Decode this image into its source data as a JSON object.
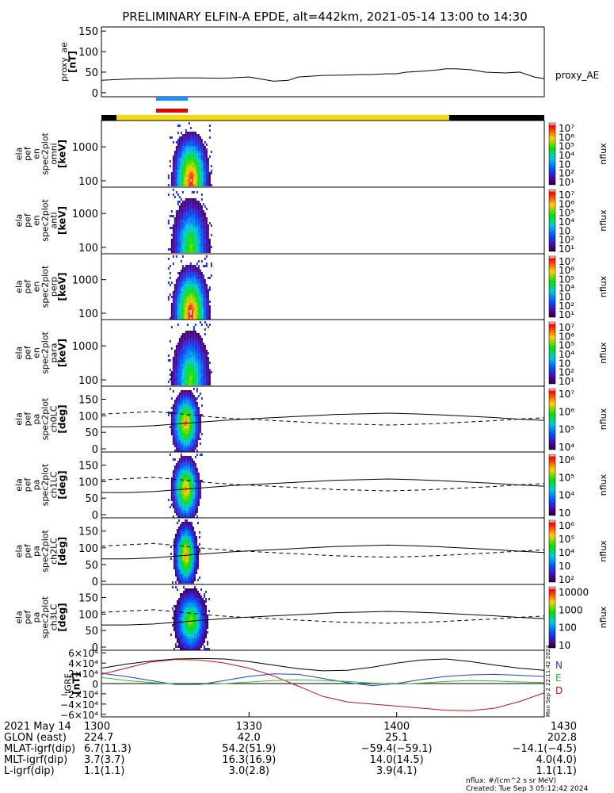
{
  "title": "PRELIMINARY ELFIN-A EPDE, alt=442km, 2021-05-14 13:00 to 14:30",
  "colors": {
    "trace_black": "#000000",
    "igrf_blue": "#1f3fd0",
    "igrf_green": "#2fbf2f",
    "igrf_red": "#d01010",
    "bar_blue": "#1e90ff",
    "bar_red": "#e00000",
    "bar_yellow": "#f4d80a"
  },
  "chart_data": [
    {
      "type": "line",
      "panel": "proxy_ae",
      "ylabel": [
        "proxy_ae",
        "[nT]"
      ],
      "legend": "proxy_AE",
      "ylim": [
        -10,
        160
      ],
      "yticks": [
        "150",
        "100",
        "50",
        "0"
      ],
      "x_minutes": [
        0,
        5,
        8,
        10,
        15,
        18,
        20,
        25,
        28,
        30,
        33,
        35,
        38,
        40,
        45,
        50,
        53,
        55,
        58,
        60,
        62,
        65,
        68,
        70,
        72,
        75,
        78,
        80,
        82,
        85,
        88,
        90
      ],
      "values": [
        30,
        33,
        34,
        34,
        36,
        36,
        36,
        35,
        37,
        38,
        32,
        28,
        30,
        38,
        42,
        43,
        44,
        44,
        46,
        46,
        50,
        52,
        55,
        58,
        58,
        56,
        50,
        49,
        48,
        50,
        38,
        34
      ]
    },
    {
      "type": "heatmap",
      "panel": "omni",
      "ylabel": [
        "ela",
        "pef",
        "en",
        "spec2plot",
        "omni",
        "[keV]"
      ],
      "yscale": "log",
      "yticks": [
        "1000",
        "100"
      ],
      "colorbar_ticks": [
        "10⁷",
        "10⁶",
        "10⁵",
        "10⁴",
        "10⁳",
        "10²",
        "10¹"
      ],
      "colorbar_label": "nflux",
      "x_range_minutes": [
        13.5,
        22.5
      ],
      "peak_log10_flux": 6.5
    },
    {
      "type": "heatmap",
      "panel": "anti",
      "ylabel": [
        "ela",
        "pef",
        "en",
        "spec2plot",
        "anti",
        "[keV]"
      ],
      "yscale": "log",
      "yticks": [
        "1000",
        "100"
      ],
      "colorbar_ticks": [
        "10⁷",
        "10⁶",
        "10⁵",
        "10⁴",
        "10⁳",
        "10²",
        "10¹"
      ],
      "colorbar_label": "nflux",
      "x_range_minutes": [
        13.5,
        22.5
      ],
      "peak_log10_flux": 4.5
    },
    {
      "type": "heatmap",
      "panel": "perp",
      "ylabel": [
        "ela",
        "pef",
        "en",
        "spec2plot",
        "perp",
        "[keV]"
      ],
      "yscale": "log",
      "yticks": [
        "1000",
        "100"
      ],
      "colorbar_ticks": [
        "10⁷",
        "10⁶",
        "10⁵",
        "10⁴",
        "10⁳",
        "10²",
        "10¹"
      ],
      "colorbar_label": "nflux",
      "x_range_minutes": [
        13.5,
        22.5
      ],
      "peak_log10_flux": 6.5
    },
    {
      "type": "heatmap",
      "panel": "para",
      "ylabel": [
        "ela",
        "pef",
        "en",
        "spec2plot",
        "para",
        "[keV]"
      ],
      "yscale": "log",
      "yticks": [
        "1000",
        "100"
      ],
      "colorbar_ticks": [
        "10⁷",
        "10⁶",
        "10⁵",
        "10⁴",
        "10⁳",
        "10²",
        "10¹"
      ],
      "colorbar_label": "nflux",
      "x_range_minutes": [
        13.5,
        22.5
      ],
      "peak_log10_flux": 4.5
    },
    {
      "type": "heatmap",
      "panel": "ch0LC",
      "ylabel": [
        "ela",
        "pef",
        "pa",
        "spec2plot",
        "ch0LC",
        "[deg]"
      ],
      "ylim": [
        0,
        180
      ],
      "yticks": [
        "150",
        "100",
        "50",
        "0"
      ],
      "colorbar_ticks": [
        "10⁷",
        "10⁶",
        "10⁵",
        "10⁴"
      ],
      "colorbar_label": "nflux",
      "x_range_minutes": [
        13.5,
        20.5
      ],
      "loss_cone_deg": [
        67,
        67,
        70,
        76,
        82,
        88,
        92,
        96,
        100,
        104,
        106,
        108,
        106,
        103,
        99,
        95,
        90,
        86
      ],
      "anti_loss_cone_deg": [
        105,
        109,
        113,
        106,
        98,
        92,
        88,
        84,
        80,
        76,
        74,
        72,
        74,
        77,
        81,
        85,
        90,
        94
      ]
    },
    {
      "type": "heatmap",
      "panel": "ch1LC",
      "ylabel": [
        "ela",
        "pef",
        "pa",
        "spec2plot",
        "ch1LC",
        "[deg]"
      ],
      "ylim": [
        0,
        180
      ],
      "yticks": [
        "150",
        "100",
        "50",
        "0"
      ],
      "colorbar_ticks": [
        "10⁶",
        "10⁵",
        "10⁴",
        "10⁳"
      ],
      "colorbar_label": "nflux",
      "x_range_minutes": [
        13.5,
        20.5
      ],
      "loss_cone_deg": [
        67,
        67,
        70,
        76,
        82,
        88,
        92,
        96,
        100,
        104,
        106,
        108,
        106,
        103,
        99,
        95,
        90,
        86
      ],
      "anti_loss_cone_deg": [
        105,
        109,
        113,
        106,
        98,
        92,
        88,
        84,
        80,
        76,
        74,
        72,
        74,
        77,
        81,
        85,
        90,
        94
      ]
    },
    {
      "type": "heatmap",
      "panel": "ch2LC",
      "ylabel": [
        "ela",
        "pef",
        "pa",
        "spec2plot",
        "ch2LC",
        "[deg]"
      ],
      "ylim": [
        0,
        180
      ],
      "yticks": [
        "150",
        "100",
        "50",
        "0"
      ],
      "colorbar_ticks": [
        "10⁶",
        "10⁵",
        "10⁴",
        "10⁳",
        "10²"
      ],
      "colorbar_label": "nflux",
      "x_range_minutes": [
        14,
        20
      ],
      "loss_cone_deg": [
        67,
        67,
        70,
        76,
        82,
        88,
        92,
        96,
        100,
        104,
        106,
        108,
        106,
        103,
        99,
        95,
        90,
        86
      ],
      "anti_loss_cone_deg": [
        105,
        109,
        113,
        106,
        98,
        92,
        88,
        84,
        80,
        76,
        74,
        72,
        74,
        77,
        81,
        85,
        90,
        94
      ]
    },
    {
      "type": "heatmap",
      "panel": "ch3LC",
      "ylabel": [
        "ela",
        "pef",
        "pa",
        "spec2plot",
        "ch3LC",
        "[deg]"
      ],
      "ylim": [
        0,
        180
      ],
      "yticks": [
        "150",
        "100",
        "50",
        "0"
      ],
      "colorbar_ticks": [
        "10000",
        "1000",
        "100",
        "10"
      ],
      "colorbar_label": "nflux",
      "x_range_minutes": [
        14,
        22
      ],
      "loss_cone_deg": [
        67,
        67,
        70,
        76,
        82,
        88,
        92,
        96,
        100,
        104,
        106,
        108,
        106,
        103,
        99,
        95,
        90,
        86
      ],
      "anti_loss_cone_deg": [
        105,
        109,
        113,
        106,
        98,
        92,
        88,
        84,
        80,
        76,
        74,
        72,
        74,
        77,
        81,
        85,
        90,
        94
      ]
    },
    {
      "type": "line",
      "panel": "IGRF",
      "ylabel": [
        "IGRF",
        "[nT]"
      ],
      "ylim": [
        -65000,
        65000
      ],
      "yticks": [
        "6×10⁴",
        "4×10⁴",
        "2×10⁴",
        "0",
        "−2×10⁴",
        "−4×10⁴",
        "−6×10⁴"
      ],
      "legend": [
        "N",
        "E",
        "D"
      ],
      "x_minutes": [
        0,
        5,
        10,
        15,
        20,
        25,
        30,
        35,
        40,
        45,
        50,
        55,
        60,
        65,
        70,
        75,
        80,
        85,
        90
      ],
      "series": [
        {
          "name": "N",
          "values": [
            30000,
            38000,
            44000,
            48000,
            49000,
            48000,
            43000,
            36000,
            29000,
            25000,
            26000,
            32000,
            40000,
            46000,
            48000,
            43000,
            36000,
            30000,
            26000
          ]
        },
        {
          "name": "E",
          "values": [
            20000,
            14000,
            6000,
            -2000,
            -2000,
            6000,
            14000,
            19000,
            18000,
            10000,
            2000,
            -4000,
            0,
            8000,
            14000,
            17000,
            18000,
            16000,
            14000
          ]
        },
        {
          "name": "D",
          "values": [
            18000,
            30000,
            42000,
            47000,
            46000,
            40000,
            30000,
            15000,
            -5000,
            -25000,
            -36000,
            -40000,
            -44000,
            -48000,
            -52000,
            -53000,
            -48000,
            -35000,
            -18000
          ]
        },
        {
          "name": "",
          "values": [
            12000,
            6000,
            2000,
            -1000,
            -1500,
            0,
            3000,
            6000,
            7000,
            6000,
            4000,
            1000,
            -1000,
            1000,
            4000,
            6000,
            5000,
            3000,
            2000
          ]
        }
      ]
    }
  ],
  "xaxis": {
    "tick_minutes": [
      0,
      30,
      60,
      90
    ],
    "rows": [
      {
        "label": "2021 May 14",
        "values": [
          "1300",
          "1330",
          "1400",
          "1430"
        ]
      },
      {
        "label": "GLON (east)",
        "values": [
          "224.7",
          "42.0",
          "25.1",
          "202.8"
        ]
      },
      {
        "label": "MLAT-igrf(dip)",
        "values": [
          "6.7(11.3)",
          "54.2(51.9)",
          "−59.4(−59.1)",
          "−14.1(−4.5)"
        ]
      },
      {
        "label": "MLT-igrf(dip)",
        "values": [
          "3.7(3.7)",
          "16.3(16.9)",
          "14.0(14.5)",
          "4.0(4.0)"
        ]
      },
      {
        "label": "L-igrf(dip)",
        "values": [
          "1.1(1.1)",
          "3.0(2.8)",
          "3.9(4.1)",
          "1.1(1.1)"
        ]
      }
    ]
  },
  "footer": {
    "units": "nflux: #/(cm^2 s sr MeV)",
    "created": "Created: Tue Sep  3 05:12:42 2024"
  },
  "side_stamp": "Mon Sep  2 22:11:42 2024"
}
